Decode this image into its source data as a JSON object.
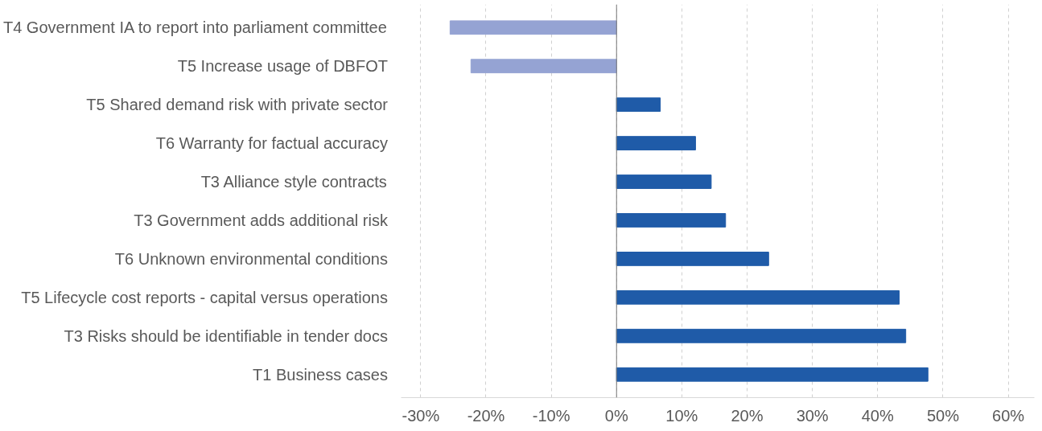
{
  "chart_data": {
    "type": "bar",
    "orientation": "horizontal",
    "categories": [
      "T4  Government IA to report into parliament committee",
      "T5  Increase usage of DBFOT",
      "T5  Shared demand risk with private sector",
      "T6  Warranty for factual accuracy",
      "T3  Alliance style contracts",
      "T3  Government adds additional risk",
      "T6  Unknown environmental conditions",
      "T5  Lifecycle cost reports - capital versus operations",
      "T3  Risks should be identifiable in tender docs",
      "T1  Business cases"
    ],
    "values": [
      -25.5,
      -22.3,
      6.7,
      12.1,
      14.5,
      16.7,
      23.3,
      43.3,
      44.3,
      47.7
    ],
    "colors": [
      "#95a3d3",
      "#95a3d3",
      "#1f5ba8",
      "#1f5ba8",
      "#1f5ba8",
      "#1f5ba8",
      "#1f5ba8",
      "#1f5ba8",
      "#1f5ba8",
      "#1f5ba8"
    ],
    "xlim": [
      -33,
      64
    ],
    "xticks": [
      {
        "value": -30,
        "label": "-30%"
      },
      {
        "value": -20,
        "label": "-20%"
      },
      {
        "value": -10,
        "label": "-10%"
      },
      {
        "value": 0,
        "label": "0%"
      },
      {
        "value": 10,
        "label": "10%"
      },
      {
        "value": 20,
        "label": "20%"
      },
      {
        "value": 30,
        "label": "30%"
      },
      {
        "value": 40,
        "label": "40%"
      },
      {
        "value": 50,
        "label": "50%"
      },
      {
        "value": 60,
        "label": "60%"
      }
    ],
    "grid": "x"
  }
}
